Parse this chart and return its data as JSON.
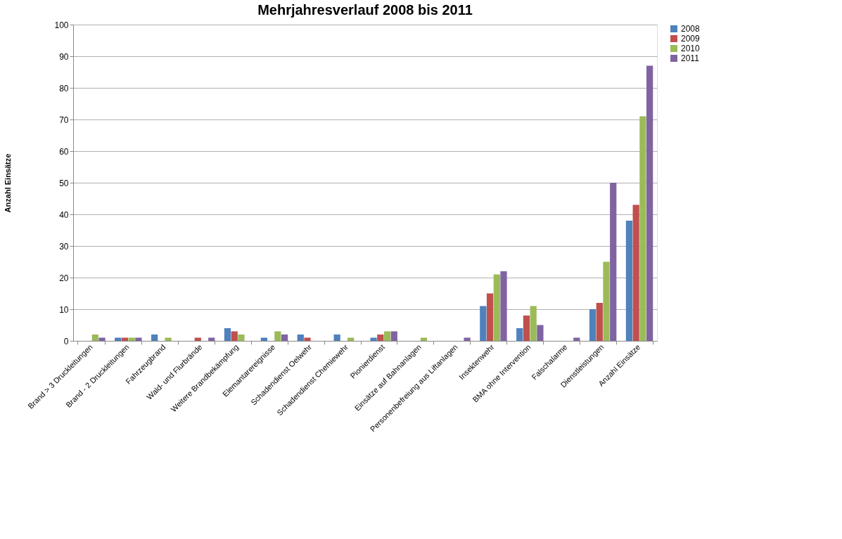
{
  "chart_data": {
    "type": "bar",
    "title": "Mehrjahresverlauf 2008 bis 2011",
    "ylabel": "Anzahl Einsätze",
    "categories": [
      "Brand > 3 Druckleitungen",
      "Brand - 2 Druckleitungen",
      "Fahrzeugbrand",
      "Wald- und Flurbrände",
      "Weitere Brandbekämpfung",
      "Elemantarereignisse",
      "Schadendienst Oelwehr",
      "Schadendienst Chemiewehr",
      "Pionierdienst",
      "Einsätze auf Bahnanlagen",
      "Personenbefreiung aus Liftanlagen",
      "Insektenwehr",
      "BMA ohne Intervention",
      "Falschalarme",
      "Dienstleistungen",
      "Anzahl Einsätze"
    ],
    "series": [
      {
        "name": "2008",
        "color": "#4f81bd",
        "values": [
          0,
          1,
          2,
          0,
          4,
          1,
          2,
          2,
          1,
          0,
          0,
          11,
          4,
          0,
          10,
          38
        ]
      },
      {
        "name": "2009",
        "color": "#c0504d",
        "values": [
          0,
          1,
          0,
          1,
          3,
          0,
          1,
          0,
          2,
          0,
          0,
          15,
          8,
          0,
          12,
          43
        ]
      },
      {
        "name": "2010",
        "color": "#9bbb59",
        "values": [
          2,
          1,
          1,
          0,
          2,
          3,
          0,
          1,
          3,
          1,
          0,
          21,
          11,
          0,
          25,
          71
        ]
      },
      {
        "name": "2011",
        "color": "#8064a2",
        "values": [
          1,
          1,
          0,
          1,
          0,
          2,
          0,
          0,
          3,
          0,
          1,
          22,
          5,
          1,
          50,
          87
        ]
      }
    ],
    "ylim": [
      0,
      100
    ],
    "yticks": [
      0,
      10,
      20,
      30,
      40,
      50,
      60,
      70,
      80,
      90,
      100
    ],
    "grid": "y",
    "legend": "right"
  }
}
